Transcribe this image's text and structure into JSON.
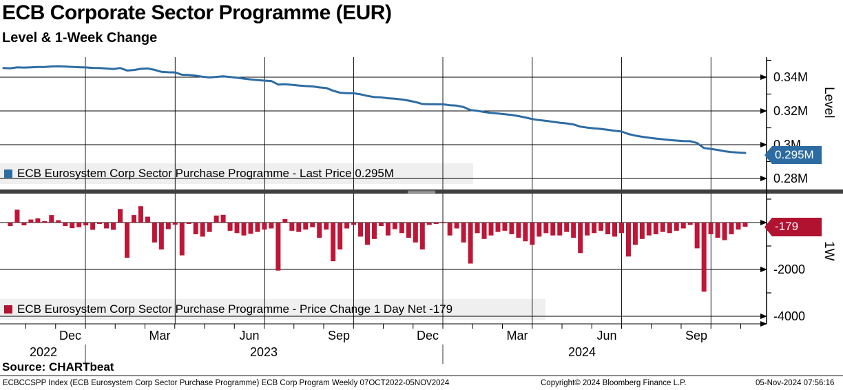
{
  "header": {
    "title": "ECB Corporate Sector Programme (EUR)",
    "subtitle": "Level & 1-Week Change"
  },
  "colors": {
    "line_blue": "#2d6ca3",
    "bar_red": "#be1637",
    "badge_blue": "#2d6ca3",
    "badge_red": "#b01230",
    "legend_bg": "#efefef",
    "separator": "#3f3f3f"
  },
  "panels": {
    "level": {
      "axis_title": "Level",
      "tick_labels": [
        "0.34M",
        "0.32M",
        "0.3M",
        "0.28M"
      ],
      "last_value_label": "0.295M",
      "legend_text": "ECB Eurosystem Corp Sector Purchase Programme - Last Price 0.295M"
    },
    "change": {
      "axis_title": "1W",
      "tick_labels": [
        "-2000",
        "-4000"
      ],
      "last_value_label": "-179",
      "legend_text": "ECB Eurosystem Corp Sector Purchase Programme - Price Change 1 Day Net -179"
    }
  },
  "chart_data": {
    "type": "line+bar",
    "title": "ECB Corporate Sector Programme (EUR)",
    "frequency": "Weekly",
    "date_range": "07OCT2022-05NOV2024",
    "x_axis": {
      "month_labels": [
        "Dec",
        "Mar",
        "Jun",
        "Sep",
        "Dec",
        "Mar",
        "Jun",
        "Sep"
      ],
      "year_labels": [
        "2022",
        "2023",
        "2024"
      ]
    },
    "y_axis_level": {
      "unit": "M",
      "major_ticks": [
        340000,
        320000,
        300000,
        280000
      ],
      "minor_ticks": [
        350000,
        330000,
        310000,
        290000
      ],
      "range_px_calibration": "0.02M per gridline"
    },
    "y_axis_change": {
      "major_ticks": [
        0,
        -2000,
        -4000
      ],
      "minor_ticks": [
        1000,
        -1000,
        -3000
      ]
    },
    "line_series": {
      "name": "ECB Eurosystem Corp Sector Purchase Programme - Last Price",
      "last_value": 295151,
      "displayed_last_value": "0.295M",
      "values": [
        345400,
        345250,
        345800,
        345680,
        345810,
        345990,
        346050,
        346370,
        346470,
        346320,
        346080,
        345880,
        345760,
        345450,
        345390,
        345140,
        344830,
        345410,
        343910,
        344230,
        344930,
        345180,
        344330,
        343180,
        342900,
        342810,
        341410,
        341350,
        340850,
        340250,
        339850,
        340150,
        340480,
        340130,
        339680,
        339130,
        338650,
        338250,
        337950,
        337700,
        335650,
        335800,
        335450,
        335050,
        334750,
        334550,
        333900,
        333600,
        331950,
        330800,
        330550,
        330450,
        329850,
        328900,
        328200,
        328050,
        327500,
        327220,
        326770,
        326120,
        325270,
        324120,
        324020,
        323960,
        323930,
        323380,
        323130,
        322280,
        320530,
        320080,
        319380,
        318830,
        318430,
        318080,
        317580,
        316930,
        316130,
        315180,
        314580,
        314130,
        313580,
        313030,
        312630,
        311980,
        310680,
        310130,
        309680,
        309330,
        308830,
        308230,
        307780,
        306330,
        305380,
        304680,
        304130,
        303630,
        303230,
        302780,
        302430,
        302180,
        302080,
        300980,
        298030,
        297530,
        296880,
        296130,
        295630,
        295330,
        295151
      ]
    },
    "bar_series": {
      "name": "ECB Eurosystem Corp Sector Purchase Programme - Price Change 1 Day Net",
      "last_value": -179,
      "values": [
        -150,
        550,
        -120,
        130,
        180,
        60,
        320,
        100,
        -150,
        -240,
        -200,
        -120,
        -310,
        -60,
        -250,
        -310,
        580,
        -1500,
        320,
        700,
        250,
        -850,
        -1150,
        -280,
        -90,
        -1400,
        -60,
        -500,
        -600,
        -400,
        300,
        330,
        -350,
        -450,
        -550,
        -480,
        -400,
        -300,
        -250,
        -2050,
        150,
        -350,
        -400,
        -300,
        -200,
        -650,
        -300,
        -1650,
        -1150,
        -250,
        -100,
        -600,
        -950,
        -700,
        -150,
        -550,
        -280,
        -450,
        -650,
        -850,
        -1150,
        -100,
        -60,
        -30,
        -550,
        -250,
        -850,
        -1750,
        -450,
        -700,
        -550,
        -400,
        -350,
        -500,
        -650,
        -800,
        -950,
        -600,
        -450,
        -550,
        -550,
        -400,
        -650,
        -1300,
        -550,
        -450,
        -350,
        -500,
        -600,
        -450,
        -1450,
        -950,
        -700,
        -550,
        -500,
        -400,
        -450,
        -350,
        -250,
        -100,
        -1100,
        -2950,
        -500,
        -650,
        -750,
        -500,
        -300,
        -179
      ]
    }
  },
  "footer": {
    "source": "Source: CHARTbeat",
    "left": "ECBCCSPP Index (ECB Eurosystem Corp Sector Purchase Programme) ECB Corp Program  Weekly 07OCT2022-05NOV2024",
    "copyright": "Copyright© 2024 Bloomberg Finance L.P.",
    "timestamp": "05-Nov-2024 07:56:16"
  }
}
